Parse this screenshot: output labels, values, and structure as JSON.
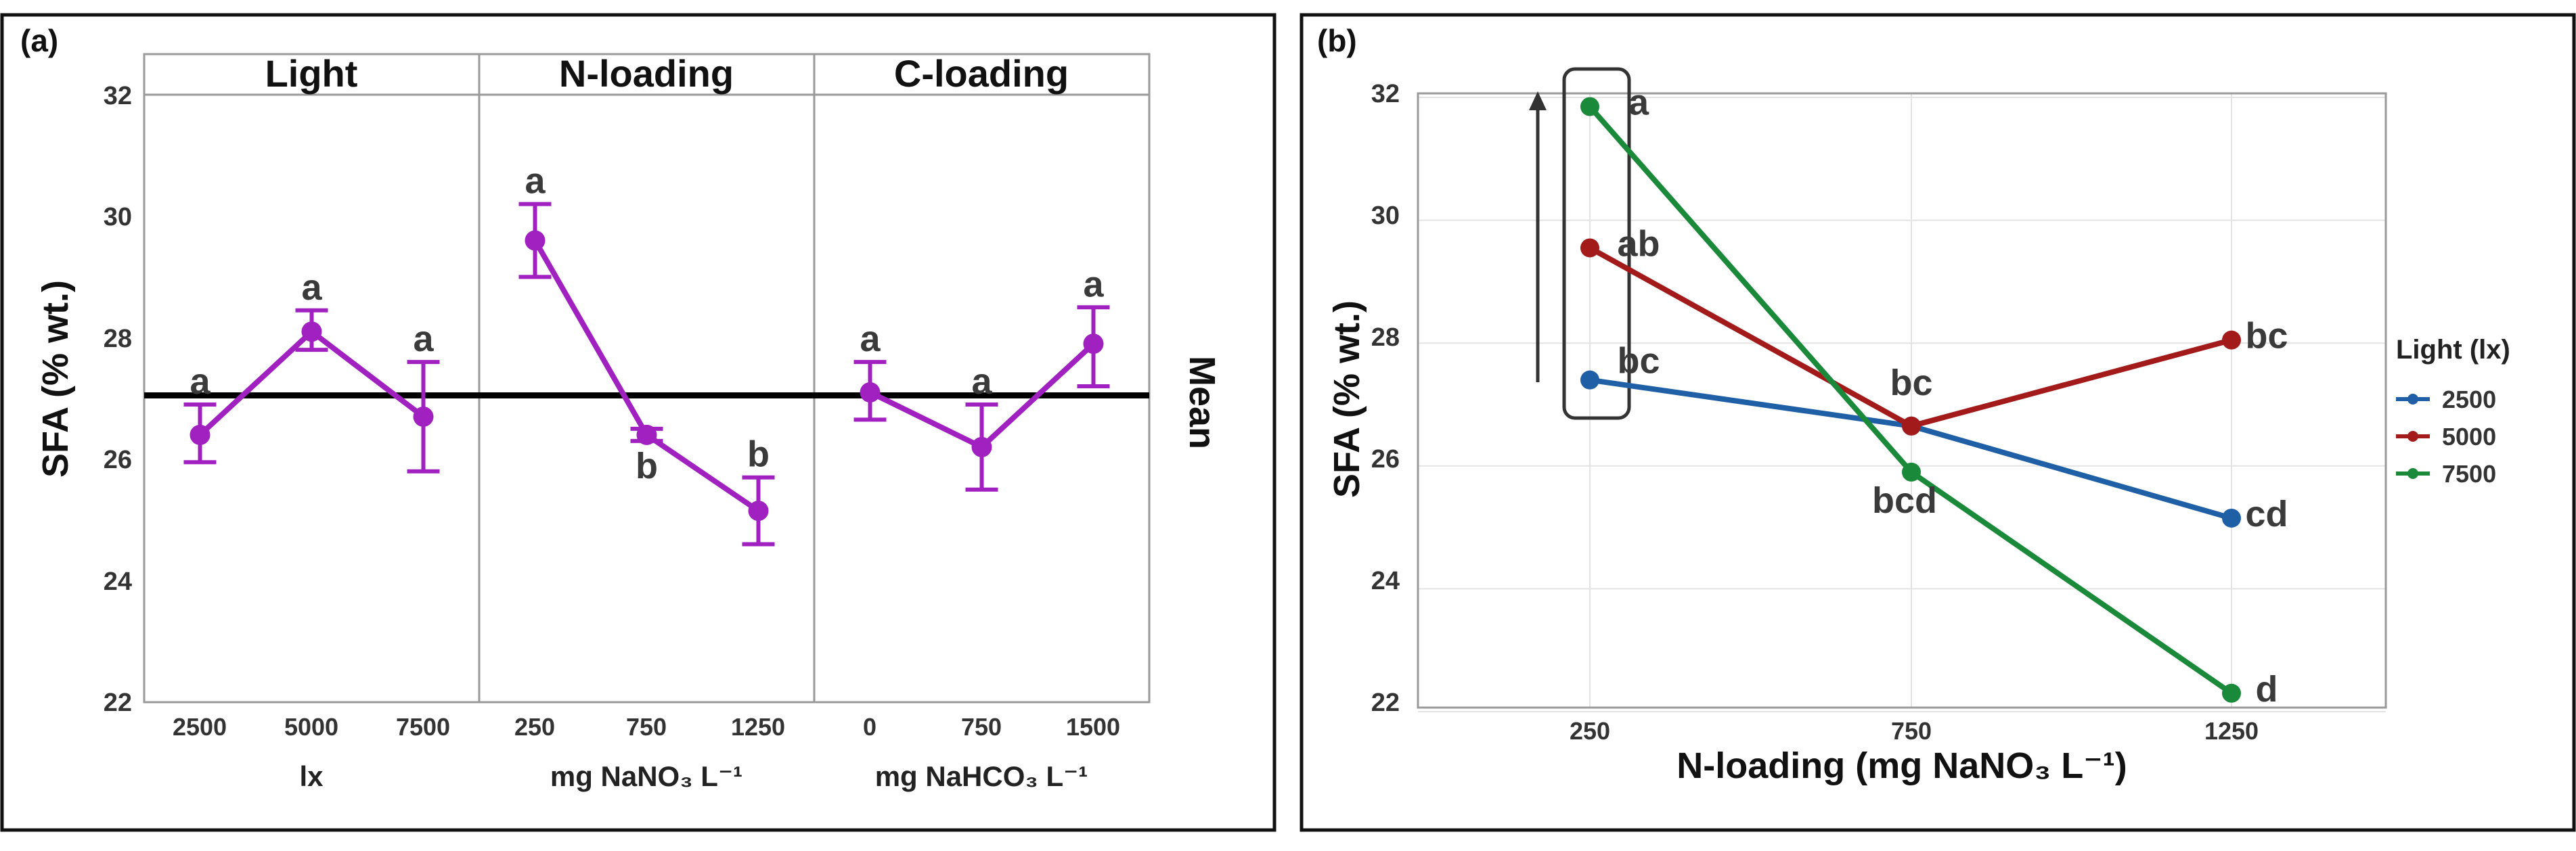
{
  "panel_a": {
    "label": "(a)",
    "ylabel": "SFA (% wt.)",
    "mean_label": "Mean",
    "y_ticks": [
      "32",
      "30",
      "28",
      "26",
      "24",
      "22"
    ],
    "facets": [
      {
        "title": "Light",
        "unit": "lx",
        "ticks": [
          "2500",
          "5000",
          "7500"
        ]
      },
      {
        "title": "N-loading",
        "unit": "mg NaNO₃ L⁻¹",
        "ticks": [
          "250",
          "750",
          "1250"
        ]
      },
      {
        "title": "C-loading",
        "unit": "mg NaHCO₃ L⁻¹",
        "ticks": [
          "0",
          "750",
          "1500"
        ]
      }
    ]
  },
  "panel_b": {
    "label": "(b)",
    "ylabel": "SFA (% wt.)",
    "xlabel": "N-loading (mg NaNO₃ L⁻¹)",
    "y_ticks": [
      "32",
      "30",
      "28",
      "26",
      "24",
      "22"
    ],
    "x_ticks": [
      "250",
      "750",
      "1250"
    ],
    "legend": {
      "title": "Light (lx)",
      "items": [
        {
          "label": "2500",
          "color": "#1f5fa6"
        },
        {
          "label": "5000",
          "color": "#a31a1a"
        },
        {
          "label": "7500",
          "color": "#1a8a3a"
        }
      ]
    }
  },
  "chart_data": [
    {
      "type": "line",
      "panel": "(a)",
      "ylabel": "SFA (% wt.)",
      "ylim": [
        22,
        32
      ],
      "reference_line": {
        "label": "Mean",
        "value": 27.05
      },
      "color": "#a020c0",
      "facets": [
        {
          "title": "Light",
          "xlabel": "lx",
          "categories": [
            "2500",
            "5000",
            "7500"
          ],
          "values": [
            26.4,
            28.1,
            26.7
          ],
          "err_low": [
            25.95,
            27.8,
            25.8
          ],
          "err_high": [
            26.9,
            28.45,
            27.6
          ],
          "letters": [
            "a",
            "a",
            "a"
          ],
          "letter_pos": [
            "above",
            "above",
            "above"
          ]
        },
        {
          "title": "N-loading",
          "xlabel": "mg NaNO₃ L⁻¹",
          "categories": [
            "250",
            "750",
            "1250"
          ],
          "values": [
            29.6,
            26.4,
            25.15
          ],
          "err_low": [
            29.0,
            26.3,
            24.6
          ],
          "err_high": [
            30.2,
            26.5,
            25.7
          ],
          "letters": [
            "a",
            "b",
            "b"
          ],
          "letter_pos": [
            "above",
            "below",
            "above"
          ]
        },
        {
          "title": "C-loading",
          "xlabel": "mg NaHCO₃ L⁻¹",
          "categories": [
            "0",
            "750",
            "1500"
          ],
          "values": [
            27.1,
            26.2,
            27.9
          ],
          "err_low": [
            26.65,
            25.5,
            27.2
          ],
          "err_high": [
            27.6,
            26.9,
            28.5
          ],
          "letters": [
            "a",
            "a",
            "a"
          ],
          "letter_pos": [
            "above",
            "above",
            "above"
          ]
        }
      ]
    },
    {
      "type": "line",
      "panel": "(b)",
      "xlabel": "N-loading (mg NaNO₃ L⁻¹)",
      "ylabel": "SFA (% wt.)",
      "x": [
        "250",
        "750",
        "1250"
      ],
      "ylim": [
        22,
        32
      ],
      "legend_title": "Light (lx)",
      "legend_position": "right",
      "grid": true,
      "series": [
        {
          "name": "2500",
          "color": "#1f5fa6",
          "values": [
            27.4,
            26.65,
            25.15
          ],
          "letters": [
            "bc",
            "",
            "cd"
          ]
        },
        {
          "name": "5000",
          "color": "#a31a1a",
          "values": [
            29.55,
            26.65,
            28.05
          ],
          "letters": [
            "ab",
            "bc",
            "bc"
          ]
        },
        {
          "name": "7500",
          "color": "#1a8a3a",
          "values": [
            31.85,
            25.9,
            22.3
          ],
          "letters": [
            "a",
            "bcd",
            "d"
          ]
        }
      ]
    }
  ]
}
